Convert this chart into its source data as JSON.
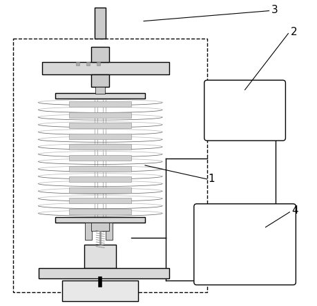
{
  "fig_width": 4.6,
  "fig_height": 4.44,
  "dpi": 100,
  "bg_color": "#ffffff",
  "lc": "#000000",
  "lw": 1.0,
  "lw_thin": 0.6,
  "lw_spring": 0.55,
  "gray_plate": "#d8d8d8",
  "gray_light": "#e8e8e8",
  "spring_color": "#999999",
  "coil_dark": "#666666",
  "coil_light": "#bbbbbb"
}
